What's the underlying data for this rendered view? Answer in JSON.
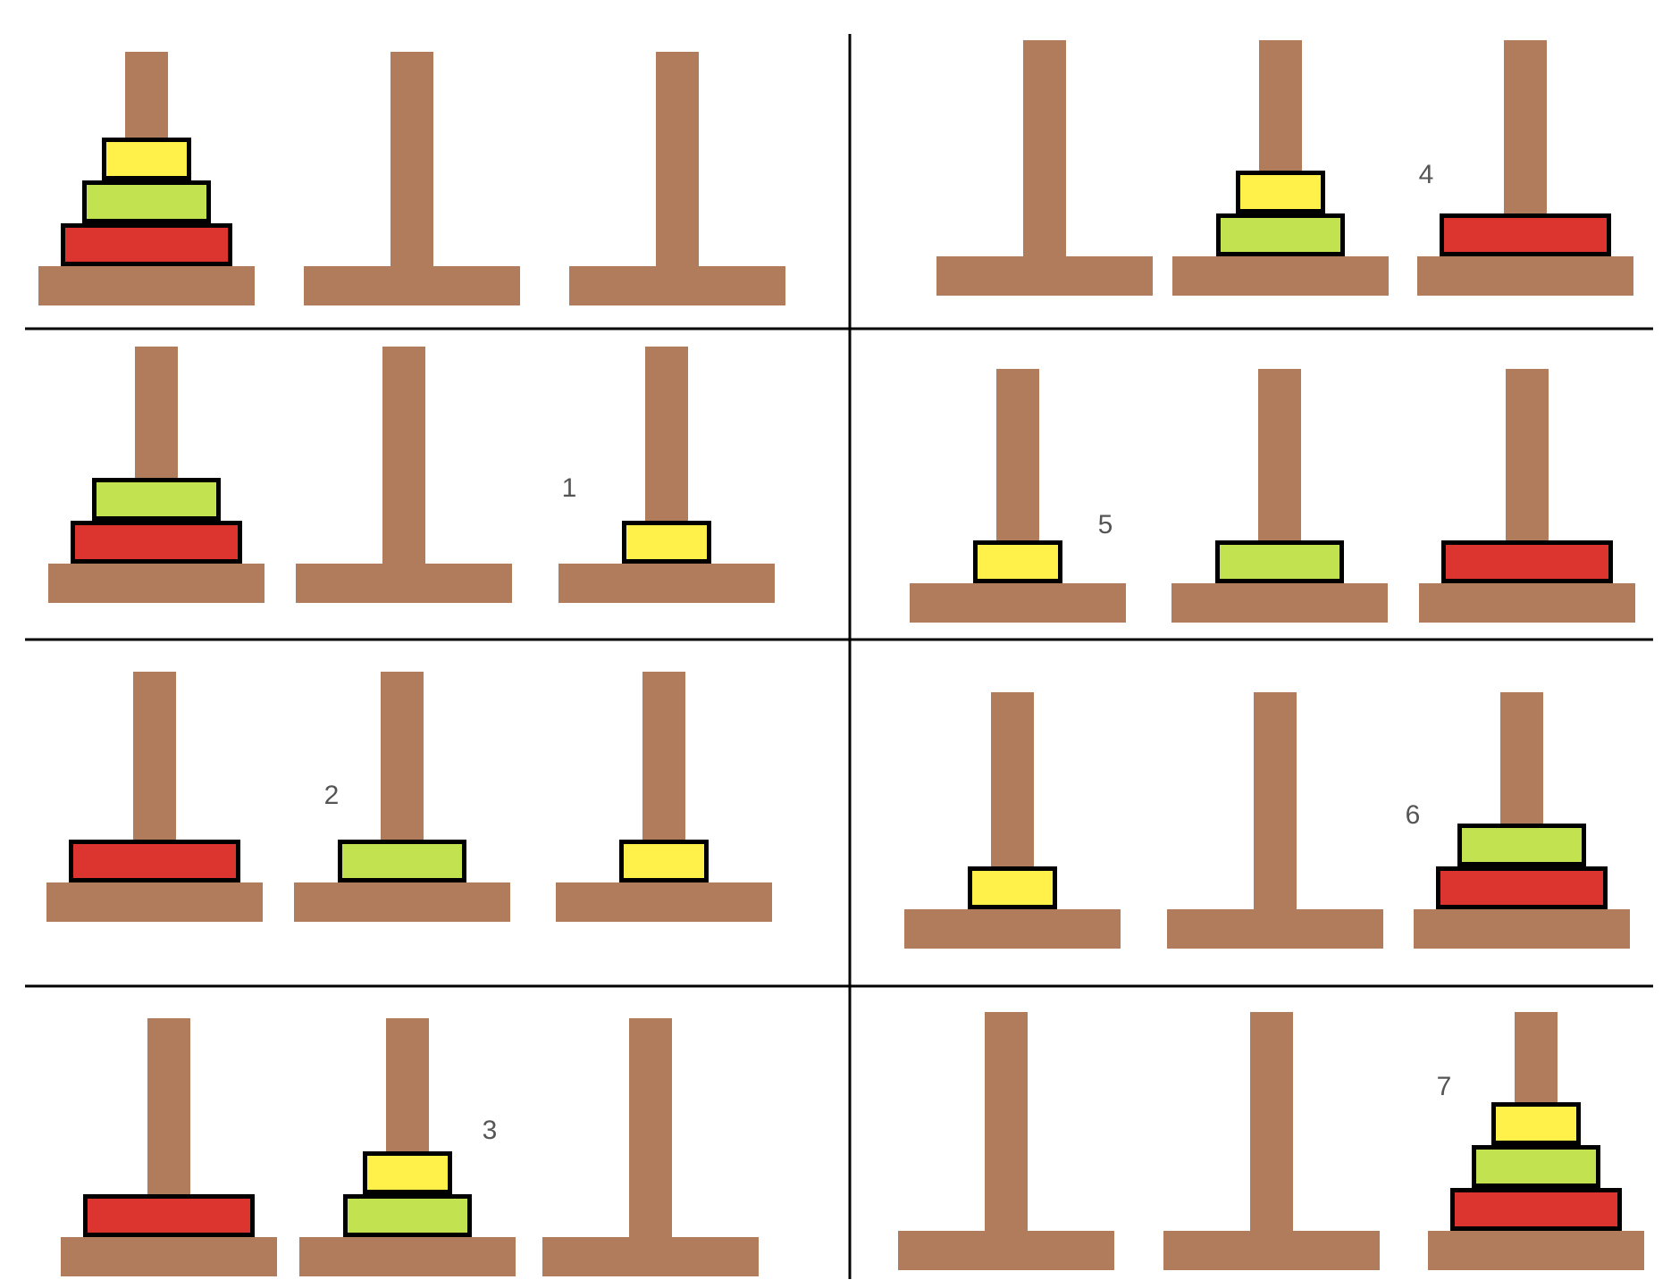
{
  "colors": {
    "wood": "#b07c5c",
    "disk_outline": "#000000",
    "grid_line": "#000000",
    "disks": {
      "small": "#fff04a",
      "medium": "#c2e34f",
      "large": "#dc3530"
    }
  },
  "panels": [
    {
      "label": "",
      "pegs": [
        [
          "large",
          "medium",
          "small"
        ],
        [],
        []
      ]
    },
    {
      "label": "1",
      "pegs": [
        [
          "large",
          "medium"
        ],
        [],
        [
          "small"
        ]
      ]
    },
    {
      "label": "2",
      "pegs": [
        [
          "large"
        ],
        [
          "medium"
        ],
        [
          "small"
        ]
      ]
    },
    {
      "label": "3",
      "pegs": [
        [
          "large"
        ],
        [
          "medium",
          "small"
        ],
        []
      ]
    },
    {
      "label": "4",
      "pegs": [
        [],
        [
          "medium",
          "small"
        ],
        [
          "large"
        ]
      ]
    },
    {
      "label": "5",
      "pegs": [
        [
          "small"
        ],
        [
          "medium"
        ],
        [
          "large"
        ]
      ]
    },
    {
      "label": "6",
      "pegs": [
        [
          "small"
        ],
        [],
        [
          "large",
          "medium"
        ]
      ]
    },
    {
      "label": "7",
      "pegs": [
        [],
        [],
        [
          "large",
          "medium",
          "small"
        ]
      ]
    }
  ]
}
